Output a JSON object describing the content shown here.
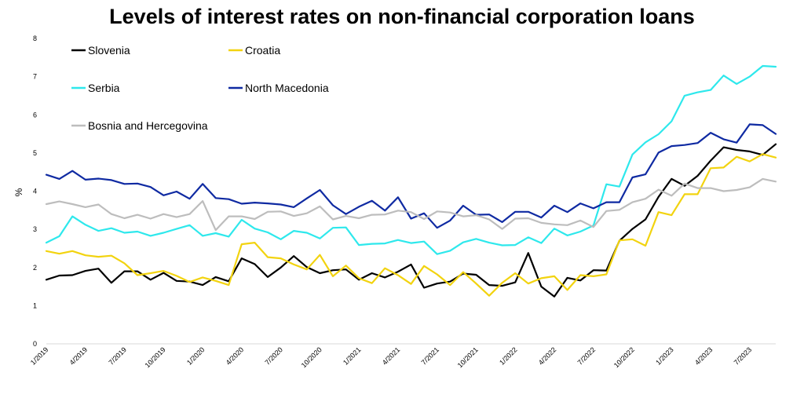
{
  "chart_data": {
    "type": "line",
    "title": "Levels of interest rates on non-financial corporation loans",
    "ylabel": "%",
    "xlabel": "",
    "ylim": [
      0,
      8
    ],
    "yticks": [
      0,
      1,
      2,
      3,
      4,
      5,
      6,
      7,
      8
    ],
    "grid": false,
    "legend_placement": "top-left",
    "x_tick_labels": [
      "1/2019",
      "4/2019",
      "7/2019",
      "10/2019",
      "1/2020",
      "4/2020",
      "7/2020",
      "10/2020",
      "1/2021",
      "4/2021",
      "7/2021",
      "10/2021",
      "1/2022",
      "4/2022",
      "7/2022",
      "10/2022",
      "1/2023",
      "4/2023",
      "7/2023"
    ],
    "x_tick_every": 3,
    "months_count": 57,
    "series": [
      {
        "name": "Slovenia",
        "color": "#000000",
        "values": [
          1.68,
          1.79,
          1.8,
          1.91,
          1.97,
          1.6,
          1.9,
          1.9,
          1.68,
          1.86,
          1.65,
          1.63,
          1.54,
          1.75,
          1.64,
          2.24,
          2.09,
          1.75,
          2.0,
          2.3,
          2.01,
          1.85,
          1.93,
          1.95,
          1.68,
          1.85,
          1.74,
          1.89,
          2.08,
          1.47,
          1.58,
          1.63,
          1.84,
          1.81,
          1.54,
          1.52,
          1.61,
          2.38,
          1.5,
          1.24,
          1.73,
          1.66,
          1.93,
          1.92,
          2.7,
          3.01,
          3.26,
          3.85,
          4.32,
          4.14,
          4.4,
          4.8,
          5.15,
          5.08,
          5.04,
          4.95,
          5.23
        ]
      },
      {
        "name": "Croatia",
        "color": "#f2d30f",
        "values": [
          2.43,
          2.36,
          2.43,
          2.32,
          2.28,
          2.31,
          2.11,
          1.8,
          1.85,
          1.91,
          1.78,
          1.62,
          1.74,
          1.65,
          1.54,
          2.61,
          2.65,
          2.27,
          2.24,
          2.08,
          1.95,
          2.33,
          1.77,
          2.05,
          1.72,
          1.59,
          1.98,
          1.8,
          1.57,
          2.04,
          1.82,
          1.54,
          1.88,
          1.58,
          1.26,
          1.6,
          1.85,
          1.58,
          1.72,
          1.77,
          1.41,
          1.8,
          1.77,
          1.82,
          2.71,
          2.74,
          2.57,
          3.45,
          3.37,
          3.92,
          3.92,
          4.6,
          4.62,
          4.9,
          4.78,
          4.97,
          4.88
        ]
      },
      {
        "name": "Serbia",
        "color": "#2ee8ec",
        "values": [
          2.65,
          2.82,
          3.34,
          3.12,
          2.96,
          3.03,
          2.91,
          2.94,
          2.83,
          2.91,
          3.01,
          3.11,
          2.83,
          2.9,
          2.81,
          3.25,
          3.02,
          2.92,
          2.74,
          2.96,
          2.91,
          2.76,
          3.04,
          3.05,
          2.59,
          2.62,
          2.63,
          2.72,
          2.64,
          2.68,
          2.35,
          2.44,
          2.66,
          2.75,
          2.65,
          2.58,
          2.59,
          2.79,
          2.64,
          3.02,
          2.84,
          2.94,
          3.1,
          4.18,
          4.12,
          4.96,
          5.28,
          5.49,
          5.83,
          6.5,
          6.59,
          6.65,
          7.03,
          6.81,
          7.0,
          7.28,
          7.26
        ]
      },
      {
        "name": "North Macedonia",
        "color": "#0f2aa2",
        "values": [
          4.43,
          4.32,
          4.53,
          4.3,
          4.33,
          4.29,
          4.19,
          4.2,
          4.11,
          3.89,
          3.99,
          3.8,
          4.19,
          3.82,
          3.79,
          3.67,
          3.7,
          3.68,
          3.65,
          3.58,
          3.81,
          4.03,
          3.63,
          3.4,
          3.59,
          3.75,
          3.49,
          3.84,
          3.28,
          3.42,
          3.04,
          3.23,
          3.62,
          3.38,
          3.39,
          3.19,
          3.46,
          3.46,
          3.31,
          3.62,
          3.45,
          3.68,
          3.55,
          3.71,
          3.71,
          4.36,
          4.44,
          5.01,
          5.18,
          5.21,
          5.26,
          5.53,
          5.36,
          5.27,
          5.75,
          5.73,
          5.5
        ]
      },
      {
        "name": "Bosnia and Hercegovina",
        "color": "#bdbdbd",
        "values": [
          3.66,
          3.73,
          3.66,
          3.58,
          3.65,
          3.4,
          3.29,
          3.38,
          3.28,
          3.4,
          3.32,
          3.4,
          3.74,
          2.98,
          3.34,
          3.34,
          3.27,
          3.46,
          3.47,
          3.35,
          3.42,
          3.6,
          3.26,
          3.35,
          3.29,
          3.38,
          3.39,
          3.49,
          3.45,
          3.27,
          3.47,
          3.44,
          3.34,
          3.37,
          3.26,
          3.01,
          3.28,
          3.29,
          3.17,
          3.13,
          3.11,
          3.23,
          3.06,
          3.48,
          3.51,
          3.71,
          3.8,
          4.04,
          3.88,
          4.2,
          4.08,
          4.08,
          4.0,
          4.03,
          4.1,
          4.32,
          4.25
        ]
      }
    ]
  }
}
